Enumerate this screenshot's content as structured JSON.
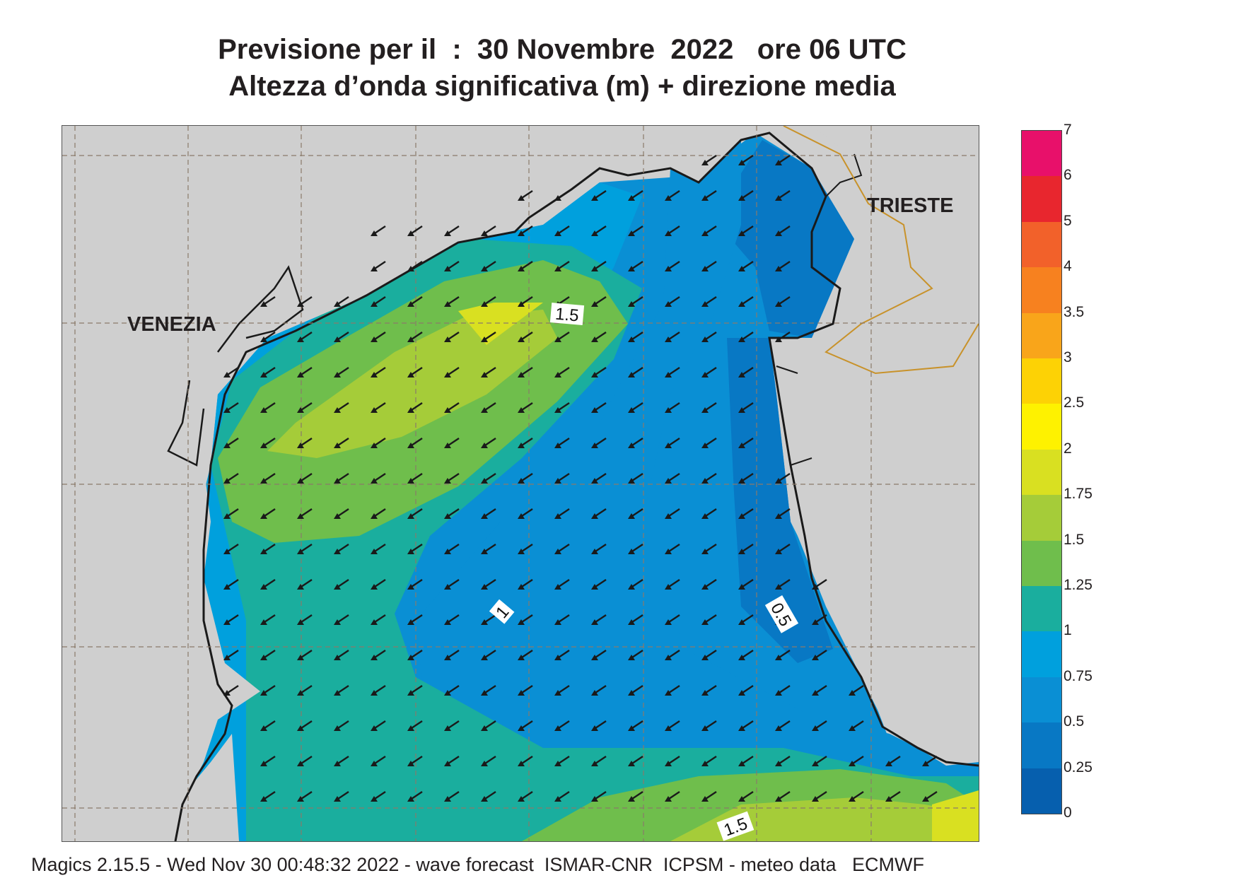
{
  "header": {
    "line1": "Previsione per il  :  30 Novembre  2022   ore 06 UTC",
    "line2": "Altezza d’onda significativa (m) + direzione media"
  },
  "cities": [
    "VENEZIA",
    "TRIESTE"
  ],
  "contour_labels": [
    "1.5",
    "1",
    "0.5",
    "1.5"
  ],
  "legend": {
    "ticks": [
      "7",
      "6",
      "5",
      "4",
      "3.5",
      "3",
      "2.5",
      "2",
      "1.75",
      "1.5",
      "1.25",
      "1",
      "0.75",
      "0.5",
      "0.25",
      "0"
    ],
    "colors": [
      "#e8106a",
      "#e8262e",
      "#f2612a",
      "#f7811f",
      "#f9a51a",
      "#fdd205",
      "#fef200",
      "#d9e021",
      "#a5cc39",
      "#6fbe4c",
      "#1aae9e",
      "#00a0dd",
      "#0a8fd4",
      "#0878c4",
      "#065fae"
    ]
  },
  "colors": {
    "land": "#cfcfcf",
    "coast": "#1a1a1a",
    "border": "#c8922a",
    "arrow": "#1a1a1a"
  },
  "footer": "Magics 2.15.5 - Wed Nov 30 00:48:32 2022 - wave forecast  ISMAR-CNR  ICPSM - meteo data   ECMWF"
}
